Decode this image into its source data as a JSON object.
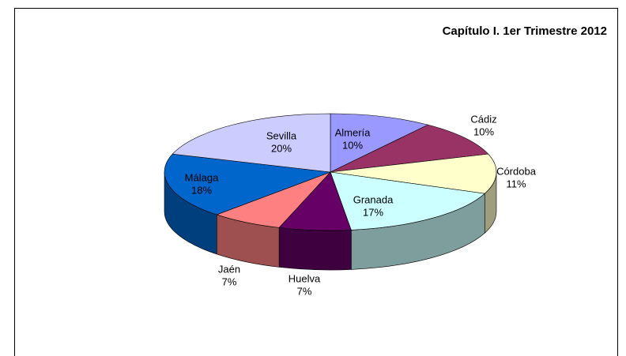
{
  "chart_data": {
    "type": "pie",
    "title": "Capítulo I. 1er Trimestre 2012",
    "categories": [
      "Almería",
      "Cádiz",
      "Córdoba",
      "Granada",
      "Huelva",
      "Jaén",
      "Málaga",
      "Sevilla"
    ],
    "values": [
      10,
      10,
      11,
      17,
      7,
      7,
      18,
      20
    ],
    "value_labels": [
      "10%",
      "10%",
      "11%",
      "17%",
      "7%",
      "7%",
      "18%",
      "20%"
    ],
    "colors": [
      "#9999ff",
      "#993366",
      "#ffffcc",
      "#ccffff",
      "#660066",
      "#ff8080",
      "#0066cc",
      "#ccccff"
    ]
  }
}
